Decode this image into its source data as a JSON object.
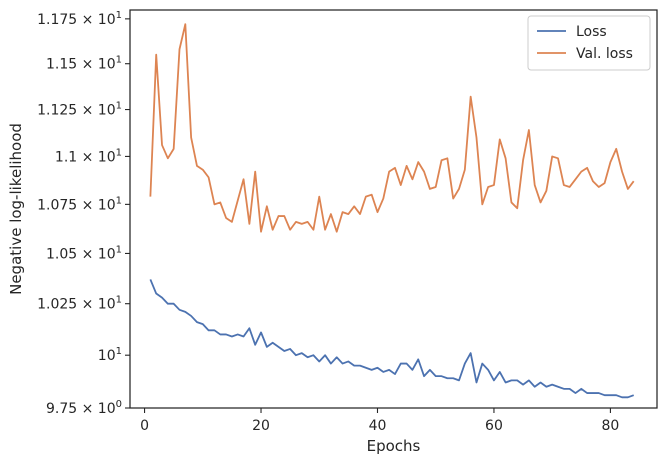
{
  "chart_data": {
    "type": "line",
    "xlabel": "Epochs",
    "ylabel": "Negative log-likelihood",
    "xlim": [
      -2.5,
      88
    ],
    "ylim": [
      9.75,
      11.8
    ],
    "y_scale": "log",
    "grid": false,
    "legend_position": "top-right",
    "x_ticks": [
      0,
      20,
      40,
      60,
      80
    ],
    "x_tick_labels": [
      "0",
      "20",
      "40",
      "60",
      "80"
    ],
    "y_ticks": [
      9.75,
      10.0,
      10.25,
      10.5,
      10.75,
      11.0,
      11.25,
      11.5,
      11.75
    ],
    "y_tick_labels": [
      {
        "mantissa": "9.75",
        "times": "×",
        "base": "10",
        "exp": "0"
      },
      {
        "mantissa": "",
        "times": "",
        "base": "10",
        "exp": "1"
      },
      {
        "mantissa": "1.025",
        "times": "×",
        "base": "10",
        "exp": "1"
      },
      {
        "mantissa": "1.05",
        "times": "×",
        "base": "10",
        "exp": "1"
      },
      {
        "mantissa": "1.075",
        "times": "×",
        "base": "10",
        "exp": "1"
      },
      {
        "mantissa": "1.1",
        "times": "×",
        "base": "10",
        "exp": "1"
      },
      {
        "mantissa": "1.125",
        "times": "×",
        "base": "10",
        "exp": "1"
      },
      {
        "mantissa": "1.15",
        "times": "×",
        "base": "10",
        "exp": "1"
      },
      {
        "mantissa": "1.175",
        "times": "×",
        "base": "10",
        "exp": "1"
      }
    ],
    "x": [
      1,
      2,
      3,
      4,
      5,
      6,
      7,
      8,
      9,
      10,
      11,
      12,
      13,
      14,
      15,
      16,
      17,
      18,
      19,
      20,
      21,
      22,
      23,
      24,
      25,
      26,
      27,
      28,
      29,
      30,
      31,
      32,
      33,
      34,
      35,
      36,
      37,
      38,
      39,
      40,
      41,
      42,
      43,
      44,
      45,
      46,
      47,
      48,
      49,
      50,
      51,
      52,
      53,
      54,
      55,
      56,
      57,
      58,
      59,
      60,
      61,
      62,
      63,
      64,
      65,
      66,
      67,
      68,
      69,
      70,
      71,
      72,
      73,
      74,
      75,
      76,
      77,
      78,
      79,
      80,
      81,
      82,
      83,
      84
    ],
    "series": [
      {
        "name": "Loss",
        "color": "#4c72b0",
        "values": [
          10.37,
          10.3,
          10.28,
          10.25,
          10.25,
          10.22,
          10.21,
          10.19,
          10.16,
          10.15,
          10.12,
          10.12,
          10.1,
          10.1,
          10.09,
          10.1,
          10.09,
          10.13,
          10.05,
          10.11,
          10.04,
          10.06,
          10.04,
          10.02,
          10.03,
          10.0,
          10.01,
          9.99,
          10.0,
          9.97,
          10.0,
          9.96,
          9.99,
          9.96,
          9.97,
          9.95,
          9.95,
          9.94,
          9.93,
          9.94,
          9.92,
          9.93,
          9.91,
          9.96,
          9.96,
          9.93,
          9.98,
          9.9,
          9.93,
          9.9,
          9.9,
          9.89,
          9.89,
          9.88,
          9.96,
          10.01,
          9.87,
          9.96,
          9.93,
          9.88,
          9.92,
          9.87,
          9.88,
          9.88,
          9.86,
          9.88,
          9.85,
          9.87,
          9.85,
          9.86,
          9.85,
          9.84,
          9.84,
          9.82,
          9.84,
          9.82,
          9.82,
          9.82,
          9.81,
          9.81,
          9.81,
          9.8,
          9.8,
          9.81
        ]
      },
      {
        "name": "Val. loss",
        "color": "#dd8452",
        "values": [
          10.79,
          11.55,
          11.06,
          10.99,
          11.04,
          11.58,
          11.72,
          11.1,
          10.95,
          10.93,
          10.89,
          10.75,
          10.76,
          10.68,
          10.66,
          10.77,
          10.88,
          10.65,
          10.92,
          10.61,
          10.74,
          10.62,
          10.69,
          10.69,
          10.62,
          10.66,
          10.65,
          10.66,
          10.62,
          10.79,
          10.62,
          10.7,
          10.61,
          10.71,
          10.7,
          10.74,
          10.7,
          10.79,
          10.8,
          10.71,
          10.78,
          10.92,
          10.94,
          10.85,
          10.95,
          10.88,
          10.97,
          10.92,
          10.83,
          10.84,
          10.98,
          10.99,
          10.78,
          10.83,
          10.93,
          11.32,
          11.1,
          10.75,
          10.84,
          10.85,
          11.09,
          10.99,
          10.76,
          10.73,
          10.98,
          11.14,
          10.85,
          10.76,
          10.82,
          11.0,
          10.99,
          10.85,
          10.84,
          10.88,
          10.92,
          10.94,
          10.87,
          10.84,
          10.86,
          10.97,
          11.04,
          10.92,
          10.83,
          10.87
        ]
      }
    ]
  }
}
